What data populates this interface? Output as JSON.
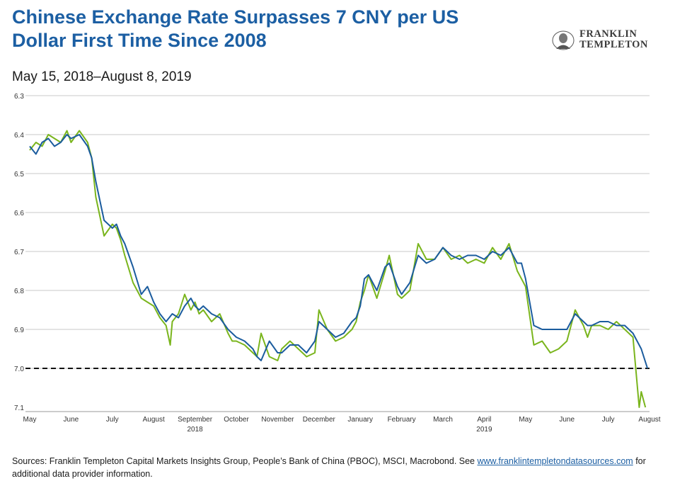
{
  "title": "Chinese Exchange Rate Surpasses 7 CNY per US Dollar First Time Since 2008",
  "subtitle": "May 15, 2018–August 8, 2019",
  "logo": {
    "line1": "FRANKLIN",
    "line2": "TEMPLETON"
  },
  "sources": {
    "text": "Sources: Franklin Templeton Capital Markets Insights Group, People’s Bank of China (PBOC), MSCI, Macrobond. See ",
    "link": "www.franklintempletondatasources.com",
    "tail": " for additional data provider information."
  },
  "chart_data": {
    "type": "line",
    "title": "Chinese Exchange Rate Surpasses 7 CNY per US Dollar First Time Since 2008",
    "subtitle": "May 15, 2018–August 8, 2019",
    "y_axis": {
      "ylim": [
        6.3,
        7.1
      ],
      "inverted": true,
      "ticks": [
        "6.3",
        "6.4",
        "6.5",
        "6.6",
        "6.7",
        "6.8",
        "6.9",
        "7.0",
        "7.1"
      ]
    },
    "x_axis": {
      "month_ticks": [
        "May",
        "June",
        "July",
        "August",
        "September",
        "October",
        "November",
        "December",
        "January",
        "February",
        "March",
        "April",
        "May",
        "June",
        "July",
        "August"
      ],
      "year_labels": [
        {
          "label": "2018",
          "under": "September"
        },
        {
          "label": "2019",
          "under": "April"
        }
      ]
    },
    "grid": "horizontal",
    "reference_line": {
      "y": 7.0,
      "style": "dashed",
      "color": "#111111"
    },
    "series": [
      {
        "color": "#1b5c9e",
        "x": [
          0.0,
          0.15,
          0.3,
          0.45,
          0.6,
          0.75,
          0.9,
          1.0,
          1.2,
          1.4,
          1.5,
          1.6,
          1.8,
          2.0,
          2.1,
          2.2,
          2.3,
          2.5,
          2.7,
          2.85,
          3.0,
          3.15,
          3.3,
          3.45,
          3.6,
          3.75,
          3.9,
          4.0,
          4.1,
          4.2,
          4.4,
          4.6,
          4.8,
          4.9,
          5.0,
          5.2,
          5.4,
          5.5,
          5.6,
          5.8,
          6.0,
          6.1,
          6.3,
          6.5,
          6.7,
          6.9,
          7.0,
          7.2,
          7.4,
          7.6,
          7.8,
          7.9,
          8.0,
          8.1,
          8.2,
          8.4,
          8.6,
          8.7,
          8.9,
          9.0,
          9.2,
          9.4,
          9.6,
          9.8,
          10.0,
          10.2,
          10.4,
          10.6,
          10.8,
          11.0,
          11.2,
          11.4,
          11.6,
          11.8,
          11.9,
          12.0,
          12.2,
          12.4,
          12.6,
          12.8,
          13.0,
          13.2,
          13.4,
          13.5,
          13.6,
          13.8,
          14.0,
          14.2,
          14.4,
          14.6,
          14.8,
          14.95
        ],
        "values": [
          6.43,
          6.45,
          6.42,
          6.41,
          6.43,
          6.42,
          6.4,
          6.41,
          6.4,
          6.43,
          6.46,
          6.52,
          6.62,
          6.64,
          6.63,
          6.66,
          6.68,
          6.74,
          6.81,
          6.79,
          6.83,
          6.86,
          6.88,
          6.86,
          6.87,
          6.84,
          6.82,
          6.84,
          6.85,
          6.84,
          6.86,
          6.87,
          6.9,
          6.91,
          6.92,
          6.93,
          6.95,
          6.97,
          6.98,
          6.93,
          6.96,
          6.96,
          6.94,
          6.94,
          6.96,
          6.93,
          6.88,
          6.9,
          6.92,
          6.91,
          6.88,
          6.87,
          6.84,
          6.77,
          6.76,
          6.8,
          6.74,
          6.73,
          6.79,
          6.81,
          6.78,
          6.71,
          6.73,
          6.72,
          6.69,
          6.71,
          6.72,
          6.71,
          6.71,
          6.72,
          6.7,
          6.71,
          6.69,
          6.73,
          6.73,
          6.77,
          6.89,
          6.9,
          6.9,
          6.9,
          6.9,
          6.86,
          6.88,
          6.89,
          6.89,
          6.88,
          6.88,
          6.89,
          6.89,
          6.91,
          6.95,
          7.0
        ]
      },
      {
        "color": "#7ab51d",
        "x": [
          0.0,
          0.15,
          0.3,
          0.45,
          0.6,
          0.75,
          0.9,
          1.0,
          1.2,
          1.4,
          1.5,
          1.6,
          1.8,
          2.0,
          2.1,
          2.2,
          2.3,
          2.5,
          2.7,
          2.85,
          3.0,
          3.15,
          3.3,
          3.4,
          3.45,
          3.6,
          3.75,
          3.9,
          4.0,
          4.1,
          4.2,
          4.4,
          4.6,
          4.8,
          4.9,
          5.0,
          5.2,
          5.4,
          5.5,
          5.6,
          5.8,
          6.0,
          6.1,
          6.3,
          6.5,
          6.7,
          6.9,
          7.0,
          7.2,
          7.4,
          7.6,
          7.8,
          7.9,
          8.0,
          8.1,
          8.2,
          8.4,
          8.6,
          8.7,
          8.9,
          9.0,
          9.2,
          9.4,
          9.6,
          9.8,
          10.0,
          10.2,
          10.4,
          10.6,
          10.8,
          11.0,
          11.2,
          11.4,
          11.6,
          11.8,
          11.9,
          12.0,
          12.2,
          12.4,
          12.6,
          12.8,
          13.0,
          13.2,
          13.4,
          13.5,
          13.6,
          13.8,
          14.0,
          14.2,
          14.4,
          14.6,
          14.75,
          14.8,
          14.9
        ],
        "values": [
          6.44,
          6.42,
          6.43,
          6.4,
          6.41,
          6.42,
          6.39,
          6.42,
          6.39,
          6.42,
          6.46,
          6.56,
          6.66,
          6.63,
          6.64,
          6.67,
          6.71,
          6.78,
          6.82,
          6.83,
          6.84,
          6.87,
          6.89,
          6.94,
          6.88,
          6.86,
          6.81,
          6.85,
          6.83,
          6.86,
          6.85,
          6.88,
          6.86,
          6.91,
          6.93,
          6.93,
          6.94,
          6.96,
          6.97,
          6.91,
          6.97,
          6.98,
          6.95,
          6.93,
          6.95,
          6.97,
          6.96,
          6.85,
          6.9,
          6.93,
          6.92,
          6.9,
          6.88,
          6.83,
          6.8,
          6.76,
          6.82,
          6.75,
          6.71,
          6.81,
          6.82,
          6.8,
          6.68,
          6.72,
          6.72,
          6.69,
          6.72,
          6.71,
          6.73,
          6.72,
          6.73,
          6.69,
          6.72,
          6.68,
          6.75,
          6.77,
          6.79,
          6.94,
          6.93,
          6.96,
          6.95,
          6.93,
          6.85,
          6.89,
          6.92,
          6.89,
          6.89,
          6.9,
          6.88,
          6.9,
          6.92,
          7.1,
          7.06,
          7.1
        ]
      }
    ]
  }
}
